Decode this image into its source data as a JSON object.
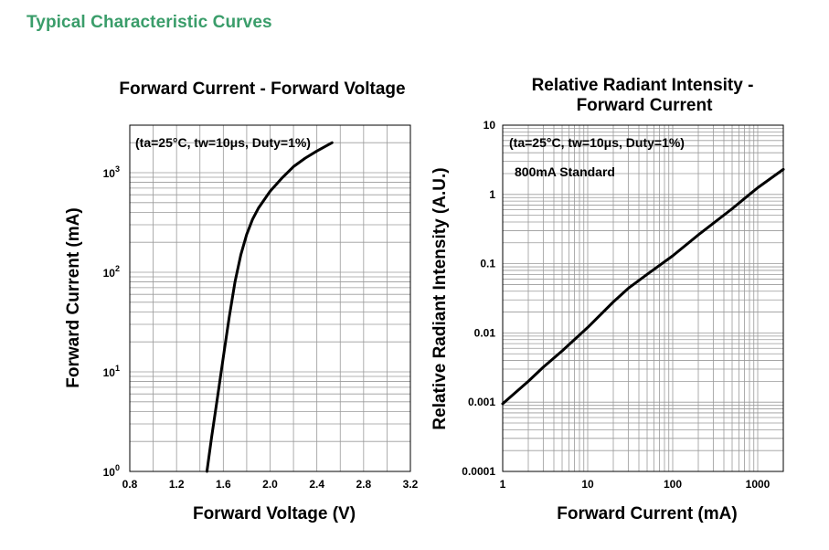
{
  "page_title": "Typical Characteristic Curves",
  "chart_data": [
    {
      "type": "line",
      "title": "Forward Current - Forward Voltage",
      "xlabel": "Forward Voltage (V)",
      "ylabel": "Forward Current (mA)",
      "annotation": "(ta=25°C, tw=10μs, Duty=1%)",
      "xscale": "linear",
      "yscale": "log",
      "xlim": [
        0.8,
        3.2
      ],
      "ylim": [
        1,
        3000
      ],
      "x_ticks": [
        "0.8",
        "1.2",
        "1.6",
        "2.0",
        "2.4",
        "2.8",
        "3.2"
      ],
      "y_ticks": [
        {
          "base": "10",
          "exp": "0"
        },
        {
          "base": "10",
          "exp": "1"
        },
        {
          "base": "10",
          "exp": "2"
        },
        {
          "base": "10",
          "exp": "3"
        }
      ],
      "grid": true,
      "series": [
        {
          "x": [
            1.46,
            1.5,
            1.55,
            1.6,
            1.65,
            1.7,
            1.75,
            1.8,
            1.85,
            1.9,
            2.0,
            2.1,
            2.2,
            2.3,
            2.4,
            2.53
          ],
          "y": [
            1,
            2.2,
            5.5,
            14,
            35,
            80,
            150,
            240,
            340,
            440,
            650,
            880,
            1150,
            1400,
            1650,
            2000
          ]
        }
      ]
    },
    {
      "type": "line",
      "title": "Relative Radiant Intensity - Forward Current",
      "title_lines": [
        "Relative Radiant Intensity -",
        "Forward Current"
      ],
      "xlabel": "Forward Current (mA)",
      "ylabel": "Relative Radiant Intensity (A.U.)",
      "annotation": "(ta=25°C, tw=10μs, Duty=1%)",
      "annotation2": "800mA Standard",
      "xscale": "log",
      "yscale": "log",
      "xlim": [
        1,
        2000
      ],
      "ylim": [
        0.0001,
        10
      ],
      "x_ticks": [
        "1",
        "10",
        "100",
        "1000"
      ],
      "y_ticks": [
        "0.0001",
        "0.001",
        "0.01",
        "0.1",
        "1",
        "10"
      ],
      "grid": true,
      "series": [
        {
          "x": [
            1,
            2,
            3,
            5,
            10,
            20,
            30,
            50,
            100,
            200,
            500,
            800,
            1000,
            2000
          ],
          "y": [
            0.00095,
            0.002,
            0.0032,
            0.0055,
            0.012,
            0.028,
            0.044,
            0.07,
            0.13,
            0.26,
            0.62,
            1.0,
            1.25,
            2.3
          ]
        }
      ]
    }
  ]
}
